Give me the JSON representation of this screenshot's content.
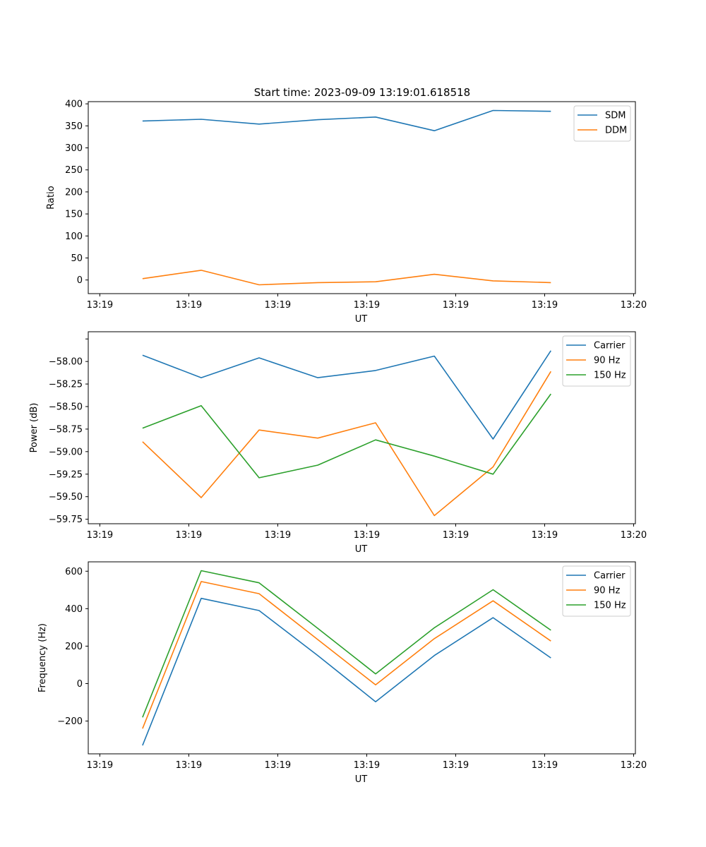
{
  "figure_title": "Start time: 2023-09-09 13:19:01.618518",
  "colors": {
    "blue": "#1f77b4",
    "orange": "#ff7f0e",
    "green": "#2ca02c"
  },
  "chart_data": [
    {
      "type": "line",
      "title": "Start time: 2023-09-09 13:19:01.618518",
      "xlabel": "UT",
      "ylabel": "Ratio",
      "x_ticks": [
        "13:19",
        "13:19",
        "13:19",
        "13:19",
        "13:19",
        "13:19",
        "13:20"
      ],
      "x_tick_values": [
        0,
        1,
        2,
        3,
        4,
        5,
        6
      ],
      "xlim": [
        -0.13,
        6.02
      ],
      "x": [
        0.48,
        1.14,
        1.79,
        2.45,
        3.1,
        3.76,
        4.42,
        5.07
      ],
      "ylim": [
        -31,
        405
      ],
      "y_ticks": [
        0,
        50,
        100,
        150,
        200,
        250,
        300,
        350,
        400
      ],
      "legend_position": "top-right",
      "series": [
        {
          "name": "SDM",
          "color": "#1f77b4",
          "values": [
            361,
            365,
            354,
            364,
            370,
            339,
            385,
            383
          ]
        },
        {
          "name": "DDM",
          "color": "#ff7f0e",
          "values": [
            3,
            22,
            -11,
            -6,
            -4,
            13,
            -2,
            -6
          ]
        }
      ]
    },
    {
      "type": "line",
      "title": "",
      "xlabel": "UT",
      "ylabel": "Power (dB)",
      "x_ticks": [
        "13:19",
        "13:19",
        "13:19",
        "13:19",
        "13:19",
        "13:19",
        "13:20"
      ],
      "x_tick_values": [
        0,
        1,
        2,
        3,
        4,
        5,
        6
      ],
      "xlim": [
        -0.13,
        6.02
      ],
      "x": [
        0.48,
        1.14,
        1.79,
        2.45,
        3.1,
        3.76,
        4.42,
        5.07
      ],
      "ylim": [
        -59.8,
        -57.67
      ],
      "y_ticks": [
        -57.75,
        -58.0,
        -58.25,
        -58.5,
        -58.75,
        -59.0,
        -59.25,
        -59.5,
        -59.75
      ],
      "y_tick_labels": [
        "",
        "−58.00",
        "−58.25",
        "−58.50",
        "−58.75",
        "−59.00",
        "−59.25",
        "−59.50",
        "−59.75"
      ],
      "legend_position": "top-right",
      "series": [
        {
          "name": "Carrier",
          "color": "#1f77b4",
          "values": [
            -57.93,
            -58.18,
            -57.96,
            -58.18,
            -58.1,
            -57.94,
            -58.86,
            -57.88
          ]
        },
        {
          "name": "90 Hz",
          "color": "#ff7f0e",
          "values": [
            -58.89,
            -59.51,
            -58.76,
            -58.85,
            -58.68,
            -59.71,
            -59.17,
            -58.11
          ]
        },
        {
          "name": "150 Hz",
          "color": "#2ca02c",
          "values": [
            -58.74,
            -58.49,
            -59.29,
            -59.15,
            -58.87,
            -59.05,
            -59.25,
            -58.36
          ]
        }
      ]
    },
    {
      "type": "line",
      "title": "",
      "xlabel": "UT",
      "ylabel": "Frequency (Hz)",
      "x_ticks": [
        "13:19",
        "13:19",
        "13:19",
        "13:19",
        "13:19",
        "13:19",
        "13:20"
      ],
      "x_tick_values": [
        0,
        1,
        2,
        3,
        4,
        5,
        6
      ],
      "xlim": [
        -0.13,
        6.02
      ],
      "x": [
        0.48,
        1.14,
        1.79,
        2.45,
        3.1,
        3.76,
        4.42,
        5.07
      ],
      "ylim": [
        -375,
        650
      ],
      "y_ticks": [
        -200,
        0,
        200,
        400,
        600
      ],
      "y_tick_labels": [
        "−200",
        "0",
        "200",
        "400",
        "600"
      ],
      "legend_position": "top-right",
      "series": [
        {
          "name": "Carrier",
          "color": "#1f77b4",
          "values": [
            -330,
            455,
            390,
            150,
            -97,
            150,
            352,
            137
          ]
        },
        {
          "name": "90 Hz",
          "color": "#ff7f0e",
          "values": [
            -240,
            545,
            480,
            235,
            -7,
            240,
            442,
            227
          ]
        },
        {
          "name": "150 Hz",
          "color": "#2ca02c",
          "values": [
            -180,
            603,
            538,
            295,
            52,
            298,
            501,
            285
          ]
        }
      ]
    }
  ]
}
